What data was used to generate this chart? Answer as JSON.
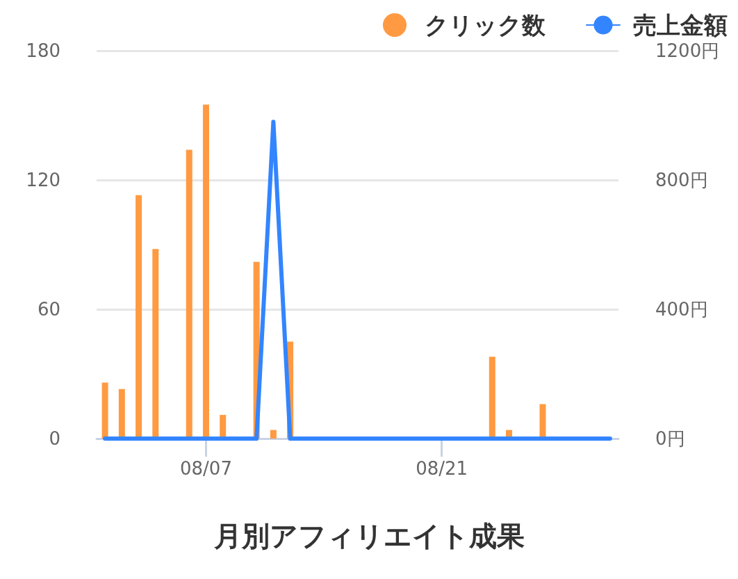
{
  "chart_data": {
    "type": "bar",
    "title": "月別アフィリエイト成果",
    "categories": [
      null,
      null,
      null,
      null,
      null,
      null,
      "08/07",
      null,
      null,
      null,
      null,
      null,
      null,
      null,
      null,
      null,
      null,
      null,
      null,
      null,
      "08/21",
      null,
      null,
      null,
      null,
      null,
      null,
      null,
      null,
      null,
      null
    ],
    "series": [
      {
        "name": "クリック数",
        "color": "#ff9a42",
        "values": [
          26,
          23,
          113,
          88,
          null,
          134,
          155,
          11,
          null,
          82,
          4,
          45,
          null,
          null,
          null,
          null,
          null,
          null,
          null,
          null,
          null,
          null,
          null,
          38,
          4,
          null,
          16,
          null,
          null,
          null,
          null
        ]
      },
      {
        "name": "売上金額",
        "type": "line",
        "axis": "y2",
        "color": "#3385ff",
        "values": [
          0,
          0,
          0,
          0,
          0,
          0,
          0,
          0,
          0,
          0,
          980,
          0,
          0,
          0,
          0,
          0,
          0,
          0,
          0,
          0,
          0,
          0,
          0,
          0,
          0,
          0,
          0,
          0,
          0,
          0,
          0
        ]
      }
    ],
    "ylim": [
      0,
      180
    ],
    "yticks": [
      0,
      60,
      120,
      180
    ],
    "y2lim": [
      0,
      1200
    ],
    "y2ticks": [
      {
        "value": 0,
        "label": "0円"
      },
      {
        "value": 400,
        "label": "400円"
      },
      {
        "value": 800,
        "label": "800円"
      },
      {
        "value": 1200,
        "label": "1200円"
      }
    ],
    "grid": "y",
    "legend": "top right",
    "marker": "none",
    "line_style": "solid"
  }
}
